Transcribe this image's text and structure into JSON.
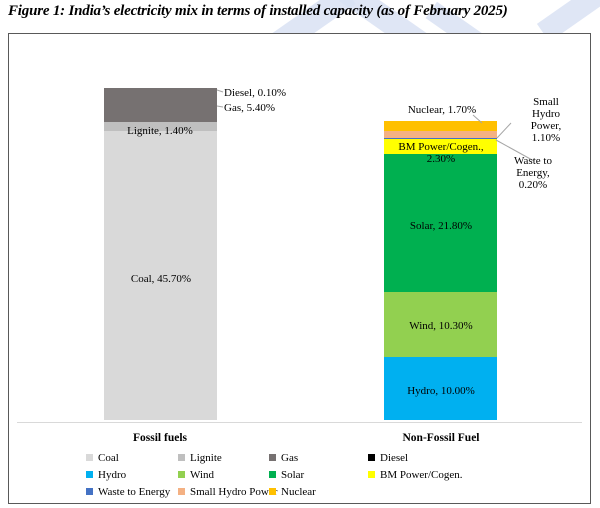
{
  "figure": {
    "title": "Figure 1: India’s electricity mix in terms of installed capacity (as of February 2025)"
  },
  "chart_data": {
    "type": "stacked-bar",
    "subtype": "100pct-stacked-column",
    "unit": "%",
    "gridlines": false,
    "legend_position": "bottom",
    "categories": [
      "Fossil fuels",
      "Non-Fossil Fuel"
    ],
    "bars": [
      {
        "category": "Fossil fuels",
        "total": 52.6,
        "segments": [
          {
            "name": "Diesel",
            "value": 0.1,
            "color": "#000000",
            "label": "Diesel,  0.10%"
          },
          {
            "name": "Gas",
            "value": 5.4,
            "color": "#767171",
            "label": "Gas,  5.40%"
          },
          {
            "name": "Lignite",
            "value": 1.4,
            "color": "#BFBFBF",
            "label": "Lignite,  1.40%"
          },
          {
            "name": "Coal",
            "value": 45.7,
            "color": "#D9D9D9",
            "label": "Coal,  45.70%"
          }
        ]
      },
      {
        "category": "Non-Fossil Fuel",
        "total": 47.4,
        "segments": [
          {
            "name": "Nuclear",
            "value": 1.7,
            "color": "#FFC000",
            "label": "Nuclear,  1.70%"
          },
          {
            "name": "Small Hydro Power",
            "value": 1.1,
            "color": "#F4B183",
            "label": "Small Hydro\nPower,\n1.10%"
          },
          {
            "name": "Waste to Energy",
            "value": 0.2,
            "color": "#4472C4",
            "label": "Waste to\nEnergy,  0.20%"
          },
          {
            "name": "BM Power/Cogen.",
            "value": 2.3,
            "color": "#FFFF00",
            "label": "BM Power/Cogen.,\n2.30%"
          },
          {
            "name": "Solar",
            "value": 21.8,
            "color": "#00B050",
            "label": "Solar,  21.80%"
          },
          {
            "name": "Wind",
            "value": 10.3,
            "color": "#92D050",
            "label": "Wind,  10.30%"
          },
          {
            "name": "Hydro",
            "value": 10.0,
            "color": "#00B0F0",
            "label": "Hydro,  10.00%"
          }
        ]
      }
    ],
    "legend": [
      {
        "label": "Coal",
        "color": "#D9D9D9"
      },
      {
        "label": "Lignite",
        "color": "#BFBFBF"
      },
      {
        "label": "Gas",
        "color": "#767171"
      },
      {
        "label": "Diesel",
        "color": "#000000"
      },
      {
        "label": "Hydro",
        "color": "#00B0F0"
      },
      {
        "label": "Wind",
        "color": "#92D050"
      },
      {
        "label": "Solar",
        "color": "#00B050"
      },
      {
        "label": "BM Power/Cogen.",
        "color": "#FFFF00"
      },
      {
        "label": "Waste to Energy",
        "color": "#4472C4"
      },
      {
        "label": "Small Hydro Power",
        "color": "#F4B183"
      },
      {
        "label": "Nuclear",
        "color": "#FFC000"
      }
    ]
  },
  "watermark_color": "#D9E2F3",
  "leader_line_color": "#A6A6A6"
}
